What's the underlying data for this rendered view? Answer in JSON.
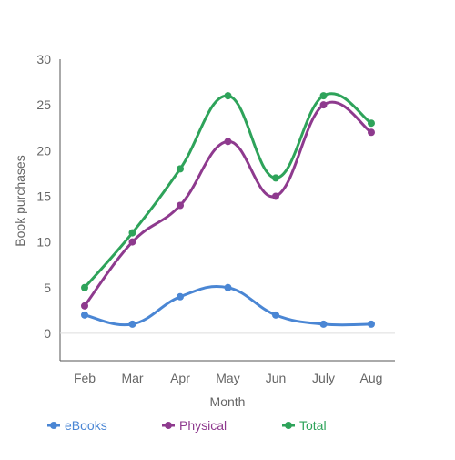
{
  "chart_data": {
    "type": "line",
    "title": "",
    "xlabel": "Month",
    "ylabel": "Book purchases",
    "categories": [
      "Feb",
      "Mar",
      "Apr",
      "May",
      "Jun",
      "July",
      "Aug"
    ],
    "ylim": [
      -3,
      30
    ],
    "yticks": [
      0,
      5,
      10,
      15,
      20,
      25,
      30
    ],
    "grid": false,
    "legend_position": "bottom",
    "smooth": true,
    "series": [
      {
        "name": "eBooks",
        "color": "#4a86d4",
        "values": [
          2,
          1,
          4,
          5,
          2,
          1,
          1
        ]
      },
      {
        "name": "Physical",
        "color": "#8e3a8e",
        "values": [
          3,
          10,
          14,
          21,
          15,
          25,
          22
        ]
      },
      {
        "name": "Total",
        "color": "#2ea35a",
        "values": [
          5,
          11,
          18,
          26,
          17,
          26,
          23
        ]
      }
    ]
  }
}
